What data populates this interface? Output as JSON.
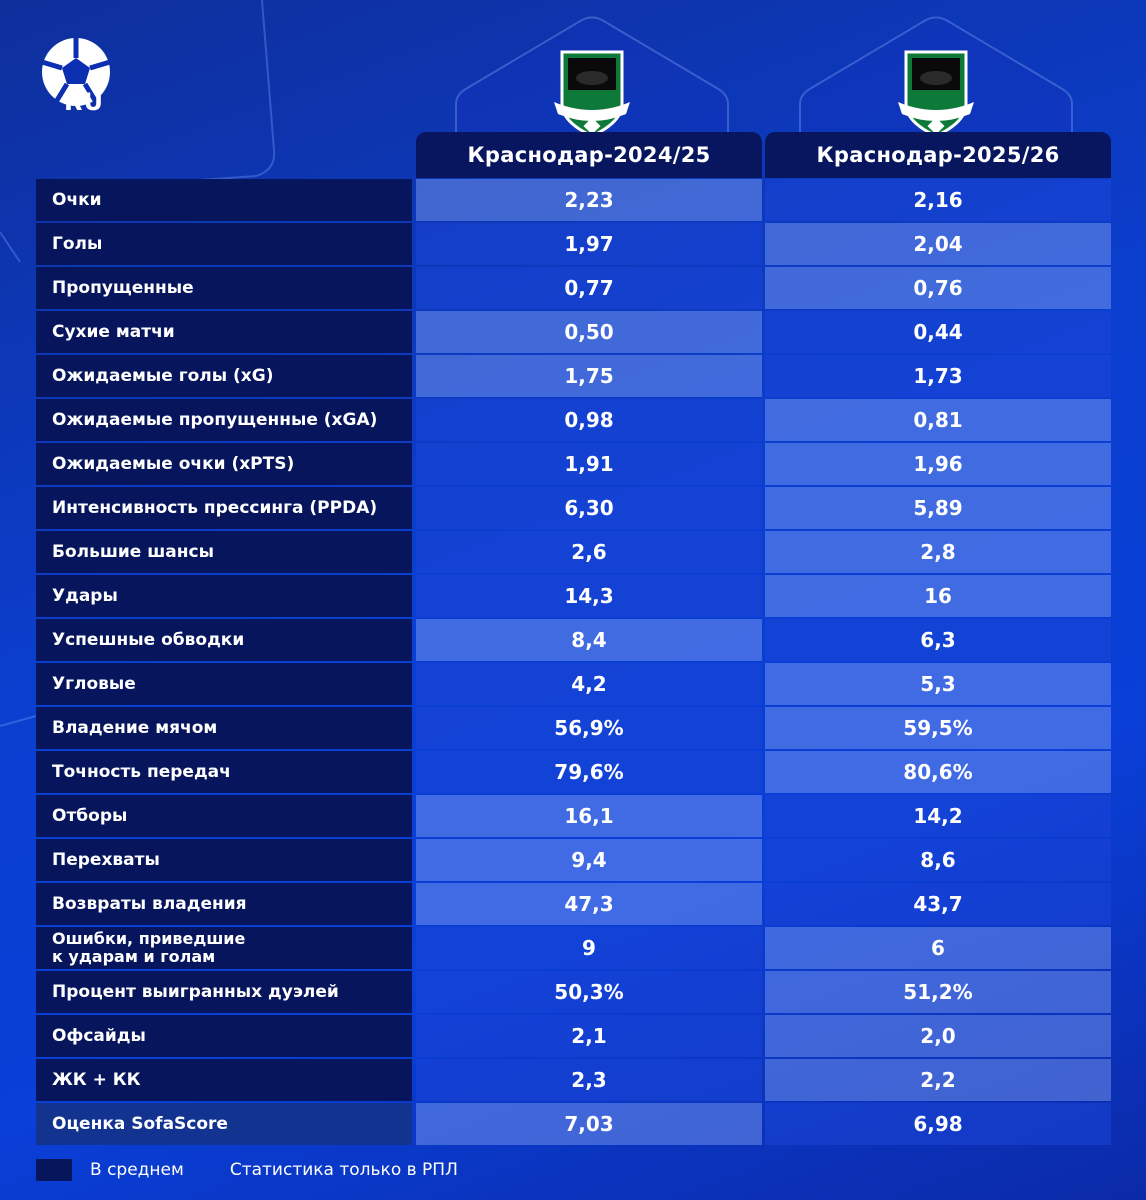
{
  "brand": {
    "logo_text": "RU"
  },
  "columns": [
    {
      "title": "Краснодар-2024/25",
      "crest": "krasnodar-crest"
    },
    {
      "title": "Краснодар-2025/26",
      "crest": "krasnodar-crest"
    }
  ],
  "rows": [
    {
      "label": "Очки",
      "v1": "2,23",
      "v2": "2,16"
    },
    {
      "label": "Голы",
      "v1": "1,97",
      "v2": "2,04"
    },
    {
      "label": "Пропущенные",
      "v1": "0,77",
      "v2": "0,76"
    },
    {
      "label": "Сухие матчи",
      "v1": "0,50",
      "v2": "0,44"
    },
    {
      "label": "Ожидаемые голы (xG)",
      "v1": "1,75",
      "v2": "1,73"
    },
    {
      "label": "Ожидаемые пропущенные (xGA)",
      "v1": "0,98",
      "v2": "0,81"
    },
    {
      "label": "Ожидаемые очки (xPTS)",
      "v1": "1,91",
      "v2": "1,96"
    },
    {
      "label": "Интенсивность прессинга (PPDA)",
      "v1": "6,30",
      "v2": "5,89"
    },
    {
      "label": "Большие шансы",
      "v1": "2,6",
      "v2": "2,8"
    },
    {
      "label": "Удары",
      "v1": "14,3",
      "v2": "16"
    },
    {
      "label": "Успешные обводки",
      "v1": "8,4",
      "v2": "6,3"
    },
    {
      "label": "Угловые",
      "v1": "4,2",
      "v2": "5,3"
    },
    {
      "label": "Владение мячом",
      "v1": "56,9%",
      "v2": "59,5%"
    },
    {
      "label": "Точность передач",
      "v1": "79,6%",
      "v2": "80,6%"
    },
    {
      "label": "Отборы",
      "v1": "16,1",
      "v2": "14,2"
    },
    {
      "label": "Перехваты",
      "v1": "9,4",
      "v2": "8,6"
    },
    {
      "label": "Возвраты владения",
      "v1": "47,3",
      "v2": "43,7"
    },
    {
      "label": "Ошибки, приведшие\nк ударам и голам",
      "v1": "9",
      "v2": "6"
    },
    {
      "label": "Процент выигранных дуэлей",
      "v1": "50,3%",
      "v2": "51,2%"
    },
    {
      "label": "Офсайды",
      "v1": "2,1",
      "v2": "2,0"
    },
    {
      "label": "ЖК + КК",
      "v1": "2,3",
      "v2": "2,2"
    },
    {
      "label": "Оценка SofaScore",
      "v1": "7,03",
      "v2": "6,98"
    }
  ],
  "legend": {
    "average": "В среднем",
    "note": "Статистика только в РПЛ"
  },
  "colors": {
    "label_bg": "#06155c",
    "highlight": "#8caaf5",
    "background": "#0b3fd0"
  }
}
